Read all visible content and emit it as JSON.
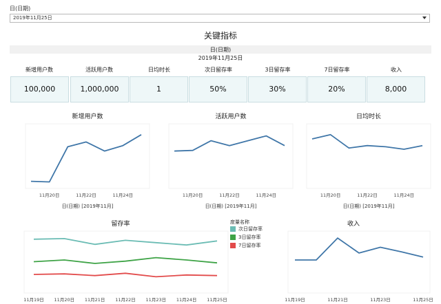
{
  "filter": {
    "label": "日(日期)",
    "selected": "2019年11月25日"
  },
  "title": "关键指标",
  "kpi": {
    "header_field": "日(日期)",
    "header_value": "2019年11月25日",
    "items": [
      {
        "label": "新增用户数",
        "value": "100,000"
      },
      {
        "label": "活跃用户数",
        "value": "1,000,000"
      },
      {
        "label": "日均时长",
        "value": "1"
      },
      {
        "label": "次日留存率",
        "value": "50%"
      },
      {
        "label": "3日留存率",
        "value": "30%"
      },
      {
        "label": "7日留存率",
        "value": "20%"
      },
      {
        "label": "收入",
        "value": "8,000"
      }
    ]
  },
  "colors": {
    "main_line": "#3f76a8",
    "series_1": "#6bbcb4",
    "series_3": "#3ea346",
    "series_7": "#e24a4a",
    "kpi_fill": "#eef7f8",
    "kpi_border": "#c9dde1"
  },
  "chart_data": [
    {
      "type": "line",
      "title": "新增用户数",
      "x": [
        "11月19日",
        "11月20日",
        "11月21日",
        "11月22日",
        "11月23日",
        "11月24日",
        "11月25日"
      ],
      "x_tick_labels": [
        "11月20日",
        "11月22日",
        "11月24日"
      ],
      "xlabel": "日(日期) [2019年11月]",
      "series": [
        {
          "values": [
            0.05,
            0.04,
            0.62,
            0.7,
            0.55,
            0.64,
            0.82
          ]
        }
      ],
      "ylim": [
        0,
        1
      ]
    },
    {
      "type": "line",
      "title": "活跃用户数",
      "x": [
        "11月19日",
        "11月20日",
        "11月21日",
        "11月22日",
        "11月23日",
        "11月24日",
        "11月25日"
      ],
      "x_tick_labels": [
        "11月20日",
        "11月22日",
        "11月24日"
      ],
      "xlabel": "日(日期) [2019年11月]",
      "series": [
        {
          "values": [
            0.55,
            0.56,
            0.72,
            0.64,
            0.72,
            0.8,
            0.64
          ]
        }
      ],
      "ylim": [
        0,
        1
      ]
    },
    {
      "type": "line",
      "title": "日均时长",
      "x": [
        "11月19日",
        "11月20日",
        "11月21日",
        "11月22日",
        "11月23日",
        "11月24日",
        "11月25日"
      ],
      "x_tick_labels": [
        "11月20日",
        "11月22日",
        "11月24日"
      ],
      "xlabel": "日(日期) [2019年11月]",
      "series": [
        {
          "values": [
            0.75,
            0.82,
            0.6,
            0.64,
            0.62,
            0.58,
            0.64
          ]
        }
      ],
      "ylim": [
        0,
        1
      ]
    },
    {
      "type": "line",
      "title": "留存率",
      "x": [
        "11月19日",
        "11月20日",
        "11月21日",
        "11月22日",
        "11月23日",
        "11月24日",
        "11月25日"
      ],
      "x_tick_labels": [
        "11月19日",
        "11月20日",
        "11月21日",
        "11月22日",
        "11月23日",
        "11月24日",
        "11月25日"
      ],
      "legend_title": "度量名称",
      "legend_placement": "right",
      "series": [
        {
          "name": "次日留存率",
          "values": [
            0.86,
            0.87,
            0.77,
            0.84,
            0.8,
            0.76,
            0.83
          ]
        },
        {
          "name": "3日留存率",
          "values": [
            0.47,
            0.5,
            0.44,
            0.48,
            0.54,
            0.5,
            0.45
          ]
        },
        {
          "name": "7日留存率",
          "values": [
            0.25,
            0.26,
            0.23,
            0.27,
            0.21,
            0.24,
            0.23
          ]
        }
      ],
      "ylim": [
        0,
        1
      ]
    },
    {
      "type": "line",
      "title": "收入",
      "x": [
        "11月19日",
        "11月20日",
        "11月21日",
        "11月22日",
        "11月23日",
        "11月24日",
        "11月25日"
      ],
      "x_tick_labels": [
        "11月19日",
        "11月21日",
        "11月23日",
        "11月25日"
      ],
      "series": [
        {
          "values": [
            0.5,
            0.5,
            0.88,
            0.62,
            0.72,
            0.64,
            0.55
          ]
        }
      ],
      "ylim": [
        0,
        1
      ]
    }
  ]
}
